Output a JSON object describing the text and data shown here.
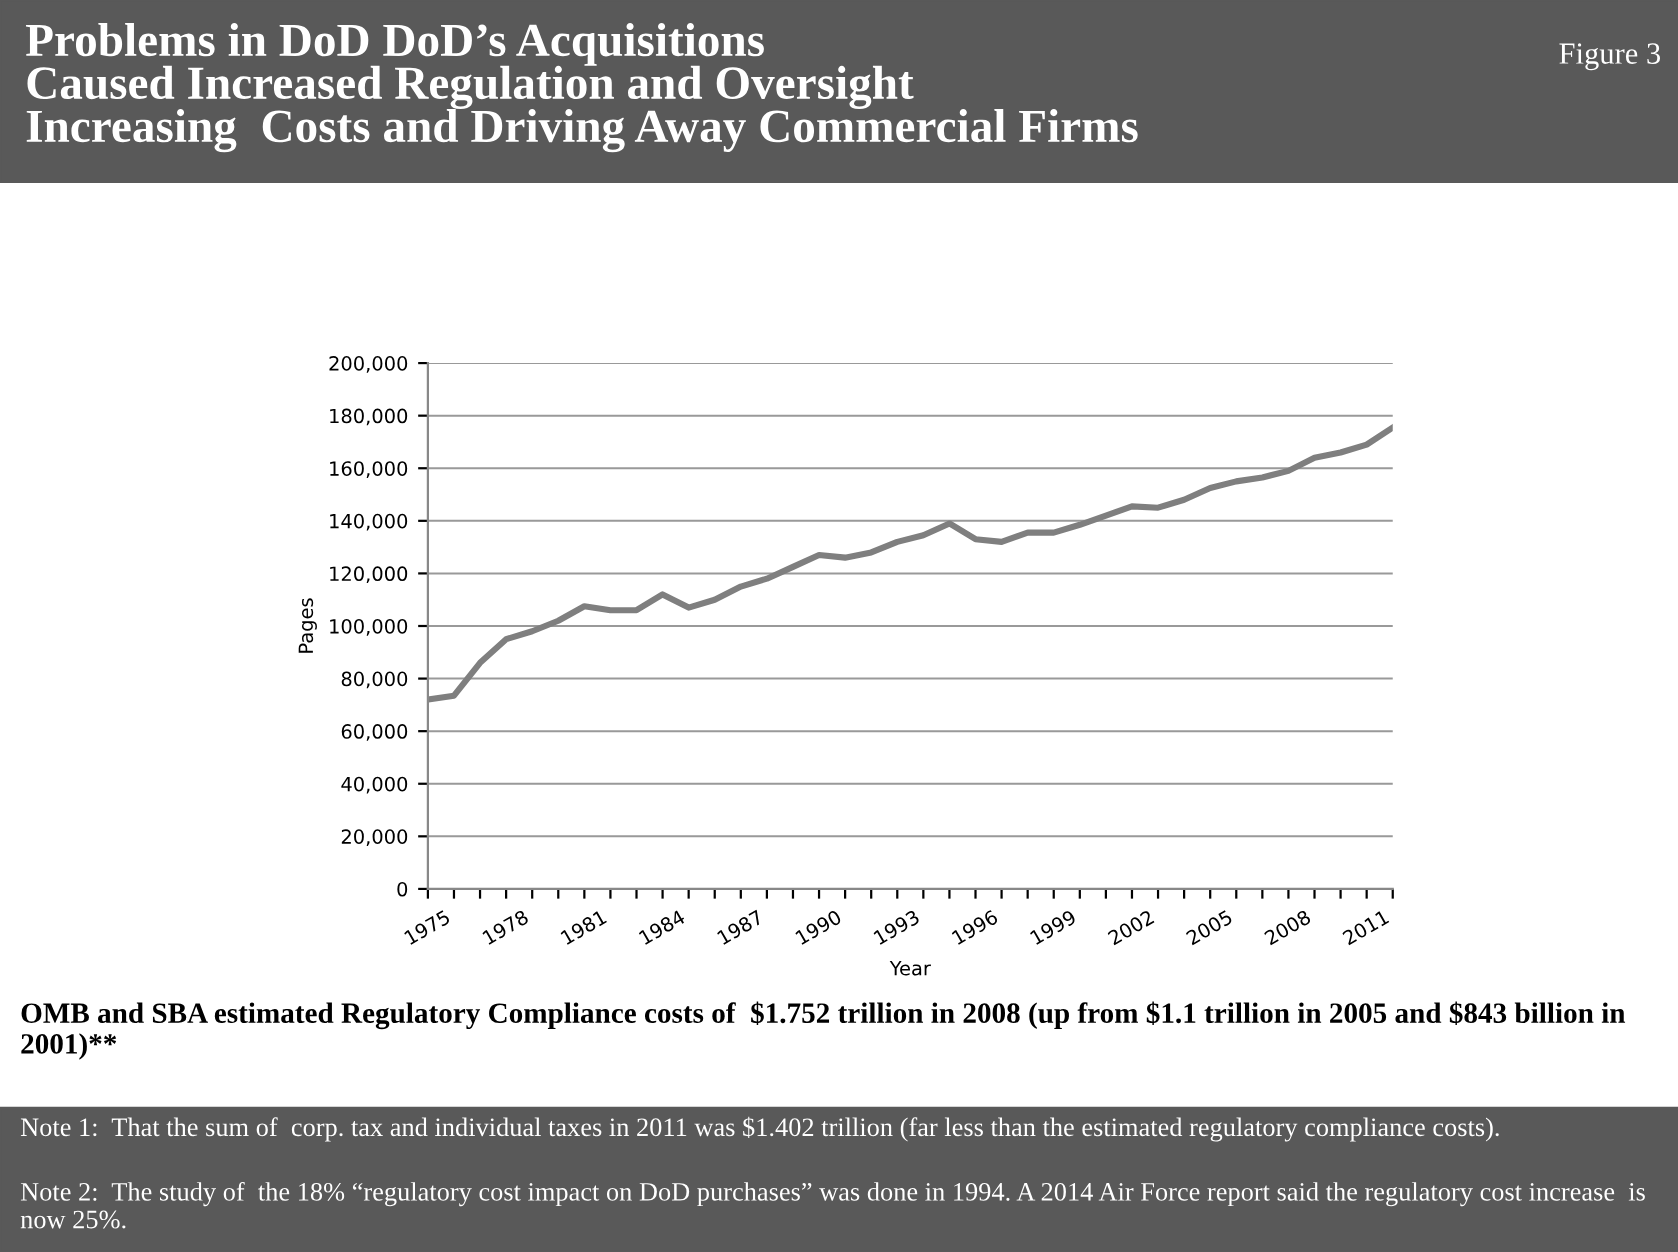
{
  "chart_data": {
    "type": "line",
    "title": "Problems in DoD DoD’s Acquisitions\nCaused Increased Regulation and Oversight\nIncreasing  Costs and Driving Away Commercial Firms",
    "subtitle": "Figure 3",
    "xlabel": "Year",
    "ylabel": "Pages",
    "x": [
      1975,
      1976,
      1977,
      1978,
      1979,
      1980,
      1981,
      1982,
      1983,
      1984,
      1985,
      1986,
      1987,
      1988,
      1989,
      1990,
      1991,
      1992,
      1993,
      1994,
      1995,
      1996,
      1997,
      1998,
      1999,
      2000,
      2001,
      2002,
      2003,
      2004,
      2005,
      2006,
      2007,
      2008,
      2009,
      2010,
      2011,
      2012
    ],
    "series": [
      {
        "color": "#7f7f7f",
        "values": [
          72000,
          73500,
          86000,
          95000,
          98000,
          102000,
          107500,
          106000,
          106000,
          112000,
          107000,
          110000,
          115000,
          118000,
          122500,
          127000,
          126000,
          128000,
          132000,
          134500,
          139000,
          133000,
          132000,
          135500,
          135500,
          138500,
          142000,
          145500,
          145000,
          148000,
          152500,
          155000,
          156500,
          159000,
          164000,
          166000,
          169000,
          175500
        ]
      }
    ],
    "xlim": [
      1975,
      2012
    ],
    "xticks": [
      1975,
      {
        "value": 1976,
        "label": null
      },
      {
        "value": 1977,
        "label": null
      },
      1978,
      {
        "value": 1979,
        "label": null
      },
      {
        "value": 1980,
        "label": null
      },
      1981,
      {
        "value": 1982,
        "label": null
      },
      {
        "value": 1983,
        "label": null
      },
      1984,
      {
        "value": 1985,
        "label": null
      },
      {
        "value": 1986,
        "label": null
      },
      1987,
      {
        "value": 1988,
        "label": null
      },
      {
        "value": 1989,
        "label": null
      },
      1990,
      {
        "value": 1991,
        "label": null
      },
      {
        "value": 1992,
        "label": null
      },
      1993,
      {
        "value": 1994,
        "label": null
      },
      {
        "value": 1995,
        "label": null
      },
      1996,
      {
        "value": 1997,
        "label": null
      },
      {
        "value": 1998,
        "label": null
      },
      1999,
      {
        "value": 2000,
        "label": null
      },
      {
        "value": 2001,
        "label": null
      },
      2002,
      {
        "value": 2003,
        "label": null
      },
      {
        "value": 2004,
        "label": null
      },
      2005,
      {
        "value": 2006,
        "label": null
      },
      {
        "value": 2007,
        "label": null
      },
      2008,
      {
        "value": 2009,
        "label": null
      },
      {
        "value": 2010,
        "label": null
      },
      2011,
      {
        "value": 2012,
        "label": null
      }
    ],
    "ylim": [
      0,
      200000
    ],
    "yticks": [
      {
        "value": 0,
        "label": "0"
      },
      {
        "value": 20000,
        "label": "20,000"
      },
      {
        "value": 40000,
        "label": "40,000"
      },
      {
        "value": 60000,
        "label": "60,000"
      },
      {
        "value": 80000,
        "label": "80,000"
      },
      {
        "value": 100000,
        "label": "100,000"
      },
      {
        "value": 120000,
        "label": "120,000"
      },
      {
        "value": 140000,
        "label": "140,000"
      },
      {
        "value": 160000,
        "label": "160,000"
      },
      {
        "value": 180000,
        "label": "180,000"
      },
      {
        "value": 200000,
        "label": "200,000"
      }
    ],
    "grid": "y",
    "legend": false,
    "marker": "none",
    "line_style": "solid",
    "annotations": [
      "OMB and SBA estimated Regulatory Compliance costs of  $1.752 trillion in 2008 (up from $1.1 trillion in 2005 and $843 billion in 2001)**",
      "Note 1:  That the sum of  corp. tax and individual taxes in 2011 was $1.402 trillion (far less than the estimated regulatory compliance costs).",
      "Note 2:  The study of  the 18% “regulatory cost impact on DoD purchases” was done in 1994. A 2014 Air Force report said the regulatory cost increase  is now 25%."
    ]
  }
}
